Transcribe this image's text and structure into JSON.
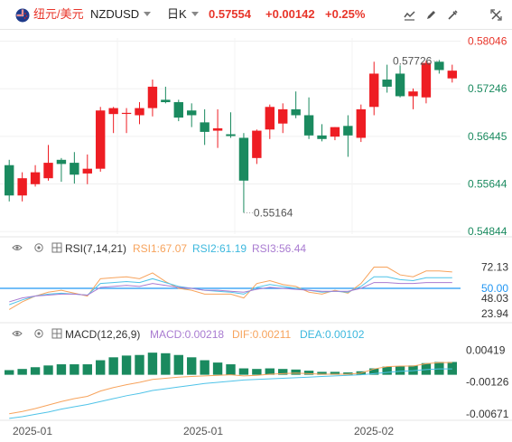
{
  "header": {
    "pair_cn": "纽元/美元",
    "symbol": "NZDUSD",
    "timeframe": "日K",
    "price": "0.57554",
    "change": "+0.00142",
    "change_pct": "+0.25%",
    "icons": [
      "nz-flag-icon",
      "chevron-down-icon",
      "line-chart-icon",
      "edit-icon",
      "settings-icon",
      "swap-icon"
    ]
  },
  "colors": {
    "up": "#ee1d23",
    "down": "#1a8a5f",
    "rsi1": "#f7a35c",
    "rsi2": "#4fc3e8",
    "rsi3": "#a97bd1",
    "macd_dif": "#f7a35c",
    "macd_dea": "#4fc3e8",
    "rsi_mid": "#2196f3"
  },
  "price_axis": {
    "ticks": [
      "0.58046",
      "0.57246",
      "0.56445",
      "0.55644",
      "0.54844"
    ],
    "max_label": "0.57726",
    "min_label": "0.55164"
  },
  "rsi": {
    "title": "RSI(7,14,21)",
    "rsi1_label": "RSI1:67.07",
    "rsi2_label": "RSI2:61.19",
    "rsi3_label": "RSI3:56.44",
    "ticks": [
      "72.13",
      "50.00",
      "48.03",
      "23.94"
    ]
  },
  "macd": {
    "title": "MACD(12,26,9)",
    "macd_label": "MACD:0.00218",
    "dif_label": "DIF:0.00211",
    "dea_label": "DEA:0.00102",
    "ticks": [
      "0.00419",
      "-0.00126",
      "-0.00671"
    ]
  },
  "x_axis": {
    "labels": [
      "2025-01",
      "2025-01",
      "2025-02"
    ]
  },
  "chart_data": [
    {
      "type": "candlestick",
      "ylim": [
        0.548,
        0.581
      ],
      "candles": [
        {
          "o": 0.5596,
          "h": 0.5605,
          "l": 0.5535,
          "c": 0.5545
        },
        {
          "o": 0.5545,
          "h": 0.5584,
          "l": 0.5535,
          "c": 0.5574
        },
        {
          "o": 0.5564,
          "h": 0.5596,
          "l": 0.556,
          "c": 0.5584
        },
        {
          "o": 0.5574,
          "h": 0.563,
          "l": 0.557,
          "c": 0.56
        },
        {
          "o": 0.5605,
          "h": 0.5608,
          "l": 0.5568,
          "c": 0.5598
        },
        {
          "o": 0.56,
          "h": 0.5618,
          "l": 0.5565,
          "c": 0.558
        },
        {
          "o": 0.5582,
          "h": 0.5614,
          "l": 0.5564,
          "c": 0.559
        },
        {
          "o": 0.559,
          "h": 0.5694,
          "l": 0.5585,
          "c": 0.5688
        },
        {
          "o": 0.5682,
          "h": 0.5694,
          "l": 0.565,
          "c": 0.5692
        },
        {
          "o": 0.5684,
          "h": 0.5692,
          "l": 0.565,
          "c": 0.5684
        },
        {
          "o": 0.568,
          "h": 0.5702,
          "l": 0.5665,
          "c": 0.5692
        },
        {
          "o": 0.5692,
          "h": 0.574,
          "l": 0.5678,
          "c": 0.5728
        },
        {
          "o": 0.5706,
          "h": 0.5728,
          "l": 0.57,
          "c": 0.5702
        },
        {
          "o": 0.5702,
          "h": 0.5706,
          "l": 0.567,
          "c": 0.5676
        },
        {
          "o": 0.5688,
          "h": 0.57,
          "l": 0.566,
          "c": 0.568
        },
        {
          "o": 0.5668,
          "h": 0.569,
          "l": 0.563,
          "c": 0.5652
        },
        {
          "o": 0.5654,
          "h": 0.569,
          "l": 0.5625,
          "c": 0.5658
        },
        {
          "o": 0.5648,
          "h": 0.5685,
          "l": 0.5642,
          "c": 0.5645
        },
        {
          "o": 0.5642,
          "h": 0.565,
          "l": 0.5516,
          "c": 0.557
        },
        {
          "o": 0.5608,
          "h": 0.5656,
          "l": 0.5598,
          "c": 0.5654
        },
        {
          "o": 0.5656,
          "h": 0.5698,
          "l": 0.564,
          "c": 0.5694
        },
        {
          "o": 0.5666,
          "h": 0.57,
          "l": 0.565,
          "c": 0.569
        },
        {
          "o": 0.569,
          "h": 0.572,
          "l": 0.5675,
          "c": 0.568
        },
        {
          "o": 0.568,
          "h": 0.571,
          "l": 0.564,
          "c": 0.5646
        },
        {
          "o": 0.5646,
          "h": 0.5665,
          "l": 0.5636,
          "c": 0.564
        },
        {
          "o": 0.5644,
          "h": 0.566,
          "l": 0.5638,
          "c": 0.566
        },
        {
          "o": 0.5662,
          "h": 0.568,
          "l": 0.561,
          "c": 0.5646
        },
        {
          "o": 0.5642,
          "h": 0.5698,
          "l": 0.5635,
          "c": 0.569
        },
        {
          "o": 0.5694,
          "h": 0.577,
          "l": 0.568,
          "c": 0.575
        },
        {
          "o": 0.574,
          "h": 0.5765,
          "l": 0.5718,
          "c": 0.5728
        },
        {
          "o": 0.575,
          "h": 0.5764,
          "l": 0.571,
          "c": 0.5712
        },
        {
          "o": 0.5712,
          "h": 0.5725,
          "l": 0.569,
          "c": 0.572
        },
        {
          "o": 0.571,
          "h": 0.5772,
          "l": 0.57,
          "c": 0.5768
        },
        {
          "o": 0.577,
          "h": 0.5773,
          "l": 0.575,
          "c": 0.5756
        },
        {
          "o": 0.5742,
          "h": 0.5765,
          "l": 0.5735,
          "c": 0.5755
        }
      ]
    },
    {
      "type": "line",
      "name": "RSI(7,14,21)",
      "ylim": [
        20,
        80
      ],
      "reference_line": 50,
      "series": [
        {
          "name": "RSI1",
          "values": [
            28,
            36,
            42,
            46,
            48,
            45,
            42,
            60,
            61,
            62,
            60,
            66,
            57,
            50,
            48,
            44,
            44,
            44,
            40,
            55,
            58,
            54,
            52,
            46,
            44,
            48,
            45,
            55,
            72,
            72,
            64,
            62,
            68,
            68,
            67
          ]
        },
        {
          "name": "RSI2",
          "values": [
            33,
            38,
            42,
            44,
            45,
            44,
            43,
            55,
            56,
            57,
            56,
            60,
            56,
            52,
            50,
            48,
            47,
            46,
            44,
            51,
            54,
            52,
            50,
            48,
            46,
            47,
            46,
            52,
            62,
            62,
            59,
            58,
            61,
            61,
            61
          ]
        },
        {
          "name": "RSI3",
          "values": [
            36,
            40,
            42,
            43,
            44,
            44,
            43,
            51,
            52,
            53,
            52,
            55,
            53,
            51,
            50,
            48,
            48,
            47,
            46,
            49,
            51,
            50,
            49,
            48,
            47,
            47,
            47,
            50,
            56,
            56,
            55,
            55,
            56,
            56,
            56
          ]
        }
      ]
    },
    {
      "type": "bar",
      "name": "MACD(12,26,9)",
      "ylim": [
        -0.0072,
        0.0046
      ],
      "series": [
        {
          "name": "MACD",
          "values": [
            0.0008,
            0.001,
            0.0013,
            0.0016,
            0.0018,
            0.0018,
            0.0018,
            0.0025,
            0.003,
            0.0033,
            0.0034,
            0.0038,
            0.0037,
            0.0034,
            0.003,
            0.0025,
            0.0021,
            0.0018,
            0.0011,
            0.001,
            0.0011,
            0.001,
            0.0009,
            0.0007,
            0.0005,
            0.0005,
            0.0004,
            0.0006,
            0.0011,
            0.0014,
            0.0015,
            0.0016,
            0.002,
            0.0022,
            0.0022
          ]
        },
        {
          "name": "DIF",
          "values": [
            -0.0067,
            -0.0063,
            -0.0058,
            -0.0052,
            -0.0046,
            -0.0041,
            -0.0037,
            -0.0028,
            -0.0022,
            -0.0017,
            -0.0013,
            -0.0008,
            -0.0006,
            -0.0004,
            -0.0003,
            -0.0002,
            -0.0001,
            0.0,
            -0.0002,
            -0.0001,
            0.0001,
            0.0002,
            0.0003,
            0.0002,
            0.0001,
            0.0001,
            0.0001,
            0.0003,
            0.001,
            0.0014,
            0.0015,
            0.0015,
            0.0019,
            0.0021,
            0.0021
          ]
        },
        {
          "name": "DEA",
          "values": [
            -0.0075,
            -0.0072,
            -0.0068,
            -0.0064,
            -0.0059,
            -0.0055,
            -0.0051,
            -0.0046,
            -0.0041,
            -0.0036,
            -0.0032,
            -0.0027,
            -0.0024,
            -0.0021,
            -0.0018,
            -0.0015,
            -0.0013,
            -0.0011,
            -0.0009,
            -0.0008,
            -0.0007,
            -0.0006,
            -0.0005,
            -0.0004,
            -0.0003,
            -0.0002,
            -0.0001,
            0.0,
            0.0002,
            0.0004,
            0.0006,
            0.0007,
            0.0009,
            0.001,
            0.001
          ]
        }
      ]
    }
  ]
}
